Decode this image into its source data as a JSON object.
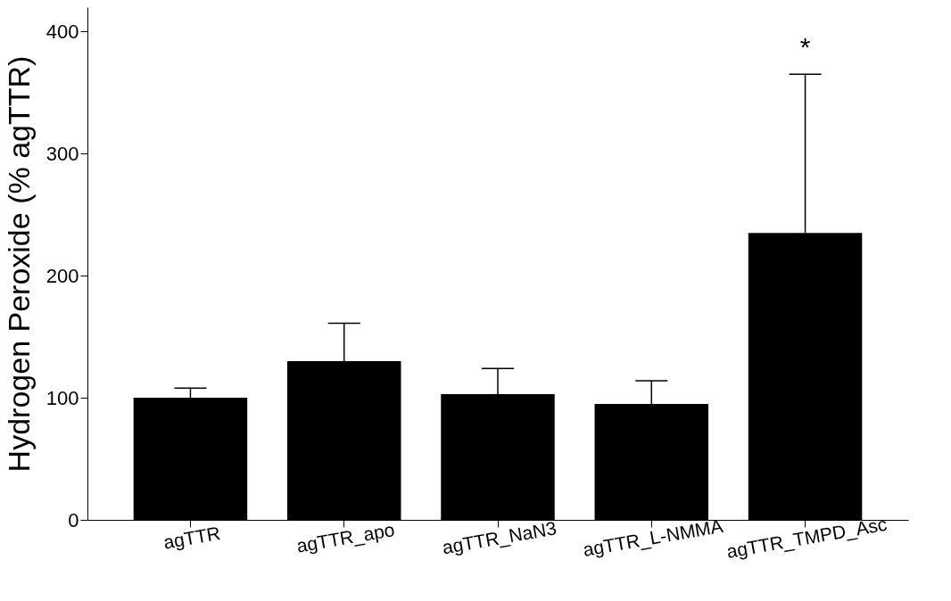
{
  "chart_data": {
    "type": "bar",
    "ylabel": "Hydrogen Peroxide (% agTTR)",
    "categories": [
      "agTTR",
      "agTTR_apo",
      "agTTR_NaN3",
      "agTTR_L-NMMA",
      "agTTR_TMPD_Asc"
    ],
    "values": [
      100,
      130,
      103,
      95,
      235
    ],
    "color": "#000000",
    "errors": [
      [
        100,
        108
      ],
      [
        130,
        161
      ],
      [
        103,
        124
      ],
      [
        95,
        114
      ],
      [
        235,
        365
      ]
    ],
    "ylim": [
      0,
      420
    ],
    "yticks": [
      0,
      100,
      200,
      300,
      400
    ],
    "grid": false,
    "annotations": [
      "*"
    ]
  }
}
